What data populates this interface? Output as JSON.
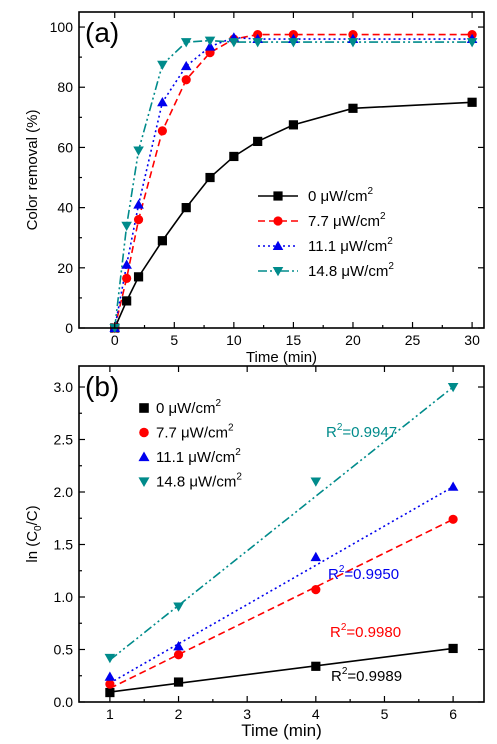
{
  "chart_data": [
    {
      "type": "line",
      "panel_label": "(a)",
      "xlabel": "Time (min)",
      "ylabel": "Color removal (%)",
      "xlim": [
        -3,
        31
      ],
      "ylim": [
        0,
        105
      ],
      "xticks": [
        0,
        5,
        10,
        15,
        20,
        25,
        30
      ],
      "yticks": [
        0,
        20,
        40,
        60,
        80,
        100
      ],
      "legend_position": "center-right",
      "series": [
        {
          "name": "0 μW/cm2",
          "name_main": "0 μW/cm",
          "name_sup": "2",
          "color": "#000000",
          "marker": "square",
          "dash": "",
          "line_mode": "connect",
          "x": [
            0,
            1,
            2,
            4,
            6,
            8,
            10,
            12,
            15,
            20,
            30
          ],
          "y": [
            0,
            9,
            17,
            29,
            40,
            50,
            57,
            62,
            67.5,
            73,
            75
          ]
        },
        {
          "name": "7.7 μW/cm2",
          "name_main": "7.7 μW/cm",
          "name_sup": "2",
          "color": "#ff0000",
          "marker": "circle",
          "dash": "7,4",
          "line_mode": "connect",
          "x": [
            0,
            1,
            2,
            4,
            6,
            8,
            10,
            12,
            15,
            20,
            30
          ],
          "y": [
            0,
            16.5,
            36,
            65.5,
            82.5,
            91.5,
            96,
            97.5,
            97.5,
            97.5,
            97.5
          ]
        },
        {
          "name": "11.1 μW/cm2",
          "name_main": "11.1 μW/cm",
          "name_sup": "2",
          "color": "#0000ee",
          "marker": "triangle-up",
          "dash": "2,3",
          "line_mode": "connect",
          "x": [
            0,
            1,
            2,
            4,
            6,
            8,
            10,
            12,
            15,
            20,
            30
          ],
          "y": [
            0,
            21,
            41,
            75,
            87,
            93.5,
            96.5,
            96,
            96,
            96,
            96
          ]
        },
        {
          "name": "14.8 μW/cm2",
          "name_main": "14.8 μW/cm",
          "name_sup": "2",
          "color": "#008b8b",
          "marker": "triangle-down",
          "dash": "9,3,2,3,2,3",
          "line_mode": "connect",
          "x": [
            0,
            1,
            2,
            4,
            6,
            8,
            10,
            12,
            15,
            20,
            30
          ],
          "y": [
            0,
            34,
            59,
            87.5,
            95,
            95.5,
            95,
            95,
            95,
            95,
            95
          ]
        }
      ]
    },
    {
      "type": "scatter",
      "panel_label": "(b)",
      "xlabel": "Time (min)",
      "ylabel_main": "ln (C",
      "ylabel_sub": "0",
      "ylabel_end": "/C)",
      "xlim": [
        0.55,
        6.45
      ],
      "ylim": [
        0,
        3.2
      ],
      "xticks": [
        1,
        2,
        3,
        4,
        5,
        6
      ],
      "yticks": [
        0.0,
        0.5,
        1.0,
        1.5,
        2.0,
        2.5,
        3.0
      ],
      "legend_position": "top-left",
      "series": [
        {
          "name": "0 μW/cm2",
          "name_main": "0 μW/cm",
          "name_sup": "2",
          "color": "#000000",
          "marker": "square",
          "dash": "",
          "line_mode": "fit",
          "x": [
            1,
            2,
            4,
            6
          ],
          "y": [
            0.09,
            0.19,
            0.34,
            0.51
          ],
          "fit": [
            [
              1,
              0.095
            ],
            [
              6,
              0.51
            ]
          ],
          "r2": "R2=0.9989",
          "r2_main": "R",
          "r2_sup": "2",
          "r2_rest": "=0.9989"
        },
        {
          "name": "7.7 μW/cm2",
          "name_main": "7.7 μW/cm",
          "name_sup": "2",
          "color": "#ff0000",
          "marker": "circle",
          "dash": "7,4",
          "line_mode": "fit",
          "x": [
            1,
            2,
            4,
            6
          ],
          "y": [
            0.17,
            0.45,
            1.07,
            1.74
          ],
          "fit": [
            [
              1,
              0.13
            ],
            [
              6,
              1.74
            ]
          ],
          "r2": "R2=0.9980",
          "r2_main": "R",
          "r2_sup": "2",
          "r2_rest": "=0.9980"
        },
        {
          "name": "11.1 μW/cm2",
          "name_main": "11.1 μW/cm",
          "name_sup": "2",
          "color": "#0000ee",
          "marker": "triangle-up",
          "dash": "2,3",
          "line_mode": "fit",
          "x": [
            1,
            2,
            4,
            6
          ],
          "y": [
            0.24,
            0.53,
            1.38,
            2.05
          ],
          "fit": [
            [
              1,
              0.18
            ],
            [
              6,
              2.05
            ]
          ],
          "r2": "R2=0.9950",
          "r2_main": "R",
          "r2_sup": "2",
          "r2_rest": "=0.9950"
        },
        {
          "name": "14.8 μW/cm2",
          "name_main": "14.8 μW/cm",
          "name_sup": "2",
          "color": "#008b8b",
          "marker": "triangle-down",
          "dash": "9,3,2,3,2,3",
          "line_mode": "fit",
          "x": [
            1,
            2,
            4,
            6
          ],
          "y": [
            0.42,
            0.91,
            2.1,
            3.0
          ],
          "fit": [
            [
              1,
              0.4
            ],
            [
              6,
              3.0
            ]
          ],
          "r2": "R2=0.9947",
          "r2_main": "R",
          "r2_sup": "2",
          "r2_rest": "=0.9947"
        }
      ]
    }
  ]
}
